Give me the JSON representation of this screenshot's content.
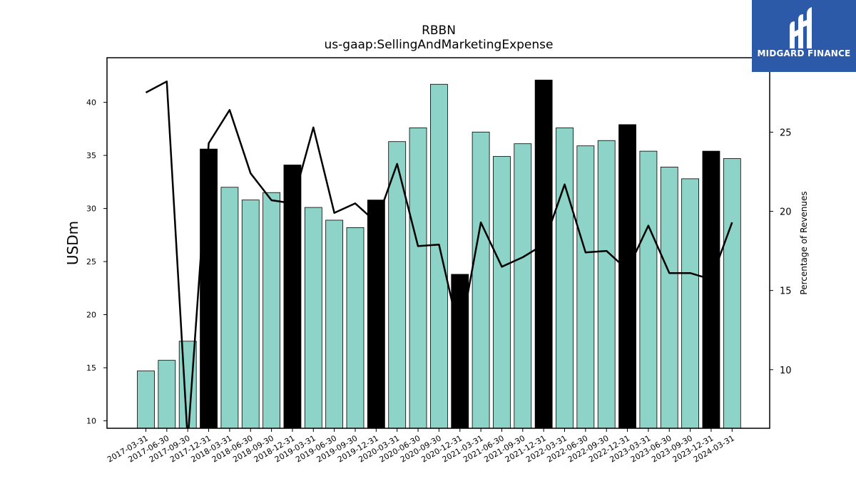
{
  "logo": {
    "text": "MIDGARD FINANCE"
  },
  "chart_data": {
    "type": "bar",
    "title": "RBBN",
    "subtitle": "us-gaap:SellingAndMarketingExpense",
    "ylabel": "USDm",
    "ylabel_right": "Percentage of Revenues",
    "ylim": [
      9.3,
      44.2
    ],
    "ylim_right": [
      6.3,
      29.7
    ],
    "yticks": [
      10,
      15,
      20,
      25,
      30,
      35,
      40
    ],
    "yticks_right": [
      10,
      15,
      20,
      25
    ],
    "categories": [
      "2017-03-31",
      "2017-06-30",
      "2017-09-30",
      "2017-12-31",
      "2018-03-31",
      "2018-06-30",
      "2018-09-30",
      "2018-12-31",
      "2019-03-31",
      "2019-06-30",
      "2019-09-30",
      "2019-12-31",
      "2020-03-31",
      "2020-06-30",
      "2020-09-30",
      "2020-12-31",
      "2021-03-31",
      "2021-06-30",
      "2021-09-30",
      "2021-12-31",
      "2022-03-31",
      "2022-06-30",
      "2022-09-30",
      "2022-12-31",
      "2023-03-31",
      "2023-06-30",
      "2023-09-30",
      "2023-12-31",
      "2024-03-31"
    ],
    "series": [
      {
        "type": "bar",
        "values": [
          14.7,
          15.7,
          17.5,
          35.6,
          32.0,
          30.8,
          31.5,
          34.1,
          30.1,
          28.9,
          28.2,
          30.8,
          36.3,
          37.6,
          41.7,
          23.8,
          37.2,
          34.9,
          36.1,
          42.1,
          37.6,
          35.9,
          36.4,
          37.9,
          35.4,
          33.9,
          32.8,
          35.4,
          34.7
        ],
        "highlight": [
          false,
          false,
          false,
          true,
          false,
          false,
          false,
          true,
          false,
          false,
          false,
          true,
          false,
          false,
          false,
          true,
          false,
          false,
          false,
          true,
          false,
          false,
          false,
          true,
          false,
          false,
          false,
          true,
          false
        ],
        "color": "#8dd3c7",
        "highlight_color": "#000000"
      },
      {
        "type": "line",
        "axis": "right",
        "values": [
          27.5,
          28.2,
          5.5,
          24.3,
          26.4,
          22.4,
          20.7,
          20.5,
          25.3,
          19.9,
          20.5,
          19.3,
          23.0,
          17.8,
          17.9,
          12.1,
          19.3,
          16.5,
          17.1,
          17.9,
          21.7,
          17.4,
          17.5,
          16.3,
          19.1,
          16.1,
          16.1,
          15.7,
          19.3
        ],
        "color": "#000000"
      }
    ]
  }
}
